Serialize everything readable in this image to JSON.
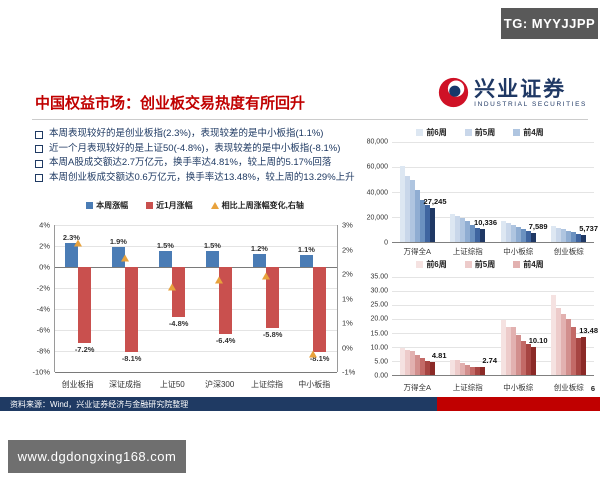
{
  "badge": {
    "text": "TG: MYYJJPP"
  },
  "logo": {
    "name_cn": "兴业证券",
    "name_en": "INDUSTRIAL SECURITIES"
  },
  "title": "中国权益市场：创业板交易热度有所回升",
  "bullets": [
    "本周表现较好的是创业板指(2.3%)，表现较差的是中小板指(1.1%)",
    "近一个月表现较好的是上证50(-4.8%)，表现较差的是中小板指(-8.1%)",
    "本周A股成交额达2.7万亿元，换手率达4.81%，较上周的5.17%回落",
    "本周创业板成交额达0.6万亿元，换手率达13.48%，较上周的13.29%上升"
  ],
  "footer": {
    "source": "资料来源：Wind，兴业证券经济与金融研究院整理",
    "page": "6"
  },
  "watermark": {
    "text": "www.dgdongxing168.com"
  },
  "colors": {
    "title_red": "#c00000",
    "bullet_navy": "#1f3a63",
    "footer_blue": "#1f3a63",
    "footer_red": "#c00000",
    "badge_gray": "#595959",
    "watermark_gray": "#6f6f6f",
    "brand_navy": "#1f3864"
  },
  "chart_data": [
    {
      "type": "bar",
      "name": "index-weekly-vs-monthly-change",
      "categories": [
        "创业板指",
        "深证成指",
        "上证50",
        "沪深300",
        "上证综指",
        "中小板指"
      ],
      "series": [
        {
          "name": "本周涨幅",
          "type": "bar",
          "color": "#4a7cb5",
          "values": [
            2.3,
            1.9,
            1.5,
            1.5,
            1.2,
            1.1
          ],
          "labels": [
            "2.3%",
            "1.9%",
            "1.5%",
            "1.5%",
            "1.2%",
            "1.1%"
          ]
        },
        {
          "name": "近1月涨幅",
          "type": "bar",
          "color": "#c9504e",
          "values": [
            -7.2,
            -8.1,
            -4.8,
            -6.4,
            -5.8,
            -8.1
          ],
          "labels": [
            "-7.2%",
            "-8.1%",
            "-4.8%",
            "-6.4%",
            "-5.8%",
            "-8.1%"
          ]
        },
        {
          "name": "相比上周涨幅变化,右轴",
          "type": "marker",
          "marker": "triangle",
          "color": "#e8a23c",
          "axis": "right",
          "values": [
            2.5,
            2.1,
            1.3,
            1.5,
            1.6,
            -0.5
          ]
        }
      ],
      "left_axis": {
        "min": -10,
        "max": 4,
        "ticks": [
          "4%",
          "2%",
          "0%",
          "-2%",
          "-4%",
          "-6%",
          "-8%",
          "-10%"
        ]
      },
      "right_axis": {
        "min": -1,
        "max": 3,
        "ticks": [
          "3%",
          "2%",
          "2%",
          "1%",
          "1%",
          "0%",
          "-1%"
        ]
      },
      "grid": true,
      "legend_position": "top"
    },
    {
      "type": "bar",
      "name": "weekly-trading-value-by-index",
      "legend": [
        "前6周",
        "前5周",
        "前4周"
      ],
      "categories": [
        "万得全A",
        "上证综指",
        "中小板综",
        "创业板综"
      ],
      "bar_colors": [
        "#dde7f2",
        "#c9d7ea",
        "#afc5e0",
        "#8fadd2",
        "#6b91c0",
        "#3f65a0",
        "#1f3864"
      ],
      "values": [
        [
          60500,
          53000,
          49500,
          41800,
          34000,
          29800,
          27245
        ],
        [
          22500,
          21000,
          19200,
          16500,
          13600,
          11500,
          10336
        ],
        [
          16500,
          15000,
          13500,
          12000,
          10200,
          8800,
          7589
        ],
        [
          12500,
          11000,
          10200,
          9000,
          7800,
          6500,
          5737
        ]
      ],
      "last_bar_labels": [
        "27,245",
        "10,336",
        "7,589",
        "5,737"
      ],
      "y_axis": {
        "min": 0,
        "max": 80000,
        "ticks": [
          "80,000",
          "60,000",
          "40,000",
          "20,000",
          "0"
        ]
      },
      "grid": true,
      "legend_position": "top"
    },
    {
      "type": "bar",
      "name": "weekly-turnover-rate-by-index",
      "legend": [
        "前6周",
        "前5周",
        "前4周"
      ],
      "categories": [
        "万得全A",
        "上证综指",
        "中小板综",
        "创业板综"
      ],
      "bar_colors": [
        "#f5e2e1",
        "#edcbca",
        "#e2b1b0",
        "#d28f8d",
        "#c36a67",
        "#a74542",
        "#8b2a27"
      ],
      "values": [
        [
          9.8,
          8.9,
          8.5,
          7.0,
          6.1,
          5.17,
          4.81
        ],
        [
          5.3,
          5.2,
          4.3,
          3.4,
          3.0,
          2.8,
          2.74
        ],
        [
          19.8,
          17.3,
          17.0,
          14.3,
          12.1,
          11.0,
          10.1
        ],
        [
          28.5,
          23.8,
          21.9,
          19.9,
          17.0,
          13.29,
          13.48
        ]
      ],
      "last_bar_labels": [
        "4.81",
        "2.74",
        "10.10",
        "13.48"
      ],
      "y_axis": {
        "min": 0,
        "max": 35,
        "ticks": [
          "35.00",
          "30.00",
          "25.00",
          "20.00",
          "15.00",
          "10.00",
          "5.00",
          "0.00"
        ]
      },
      "grid": true,
      "legend_position": "top"
    }
  ]
}
